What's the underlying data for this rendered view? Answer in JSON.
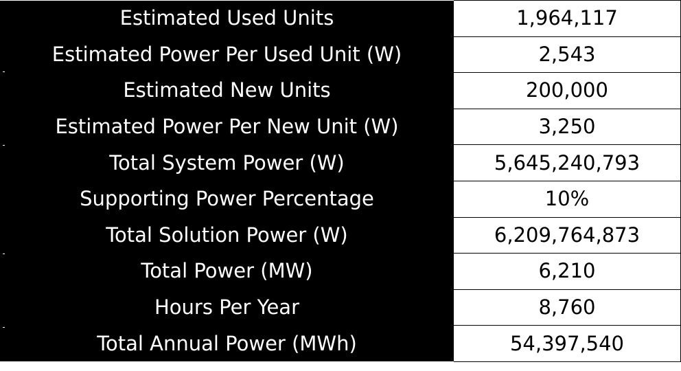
{
  "table": {
    "rows": [
      {
        "label": "Estimated Used Units",
        "value": "1,964,117"
      },
      {
        "label": "Estimated Power Per Used Unit (W)",
        "value": "2,543"
      },
      {
        "label": "Estimated New Units",
        "value": "200,000"
      },
      {
        "label": "Estimated Power Per New Unit (W)",
        "value": "3,250"
      },
      {
        "label": "Total System Power (W)",
        "value": "5,645,240,793"
      },
      {
        "label": "Supporting Power Percentage",
        "value": "10%"
      },
      {
        "label": "Total Solution Power (W)",
        "value": "6,209,764,873"
      },
      {
        "label": "Total Power (MW)",
        "value": "6,210"
      },
      {
        "label": "Hours Per Year",
        "value": "8,760"
      },
      {
        "label": "Total Annual Power (MWh)",
        "value": "54,397,540"
      }
    ]
  },
  "colors": {
    "label_background": "#000000",
    "label_text": "#ffffff",
    "value_background": "#ffffff",
    "value_text": "#000000",
    "grid_line": "#000000"
  }
}
